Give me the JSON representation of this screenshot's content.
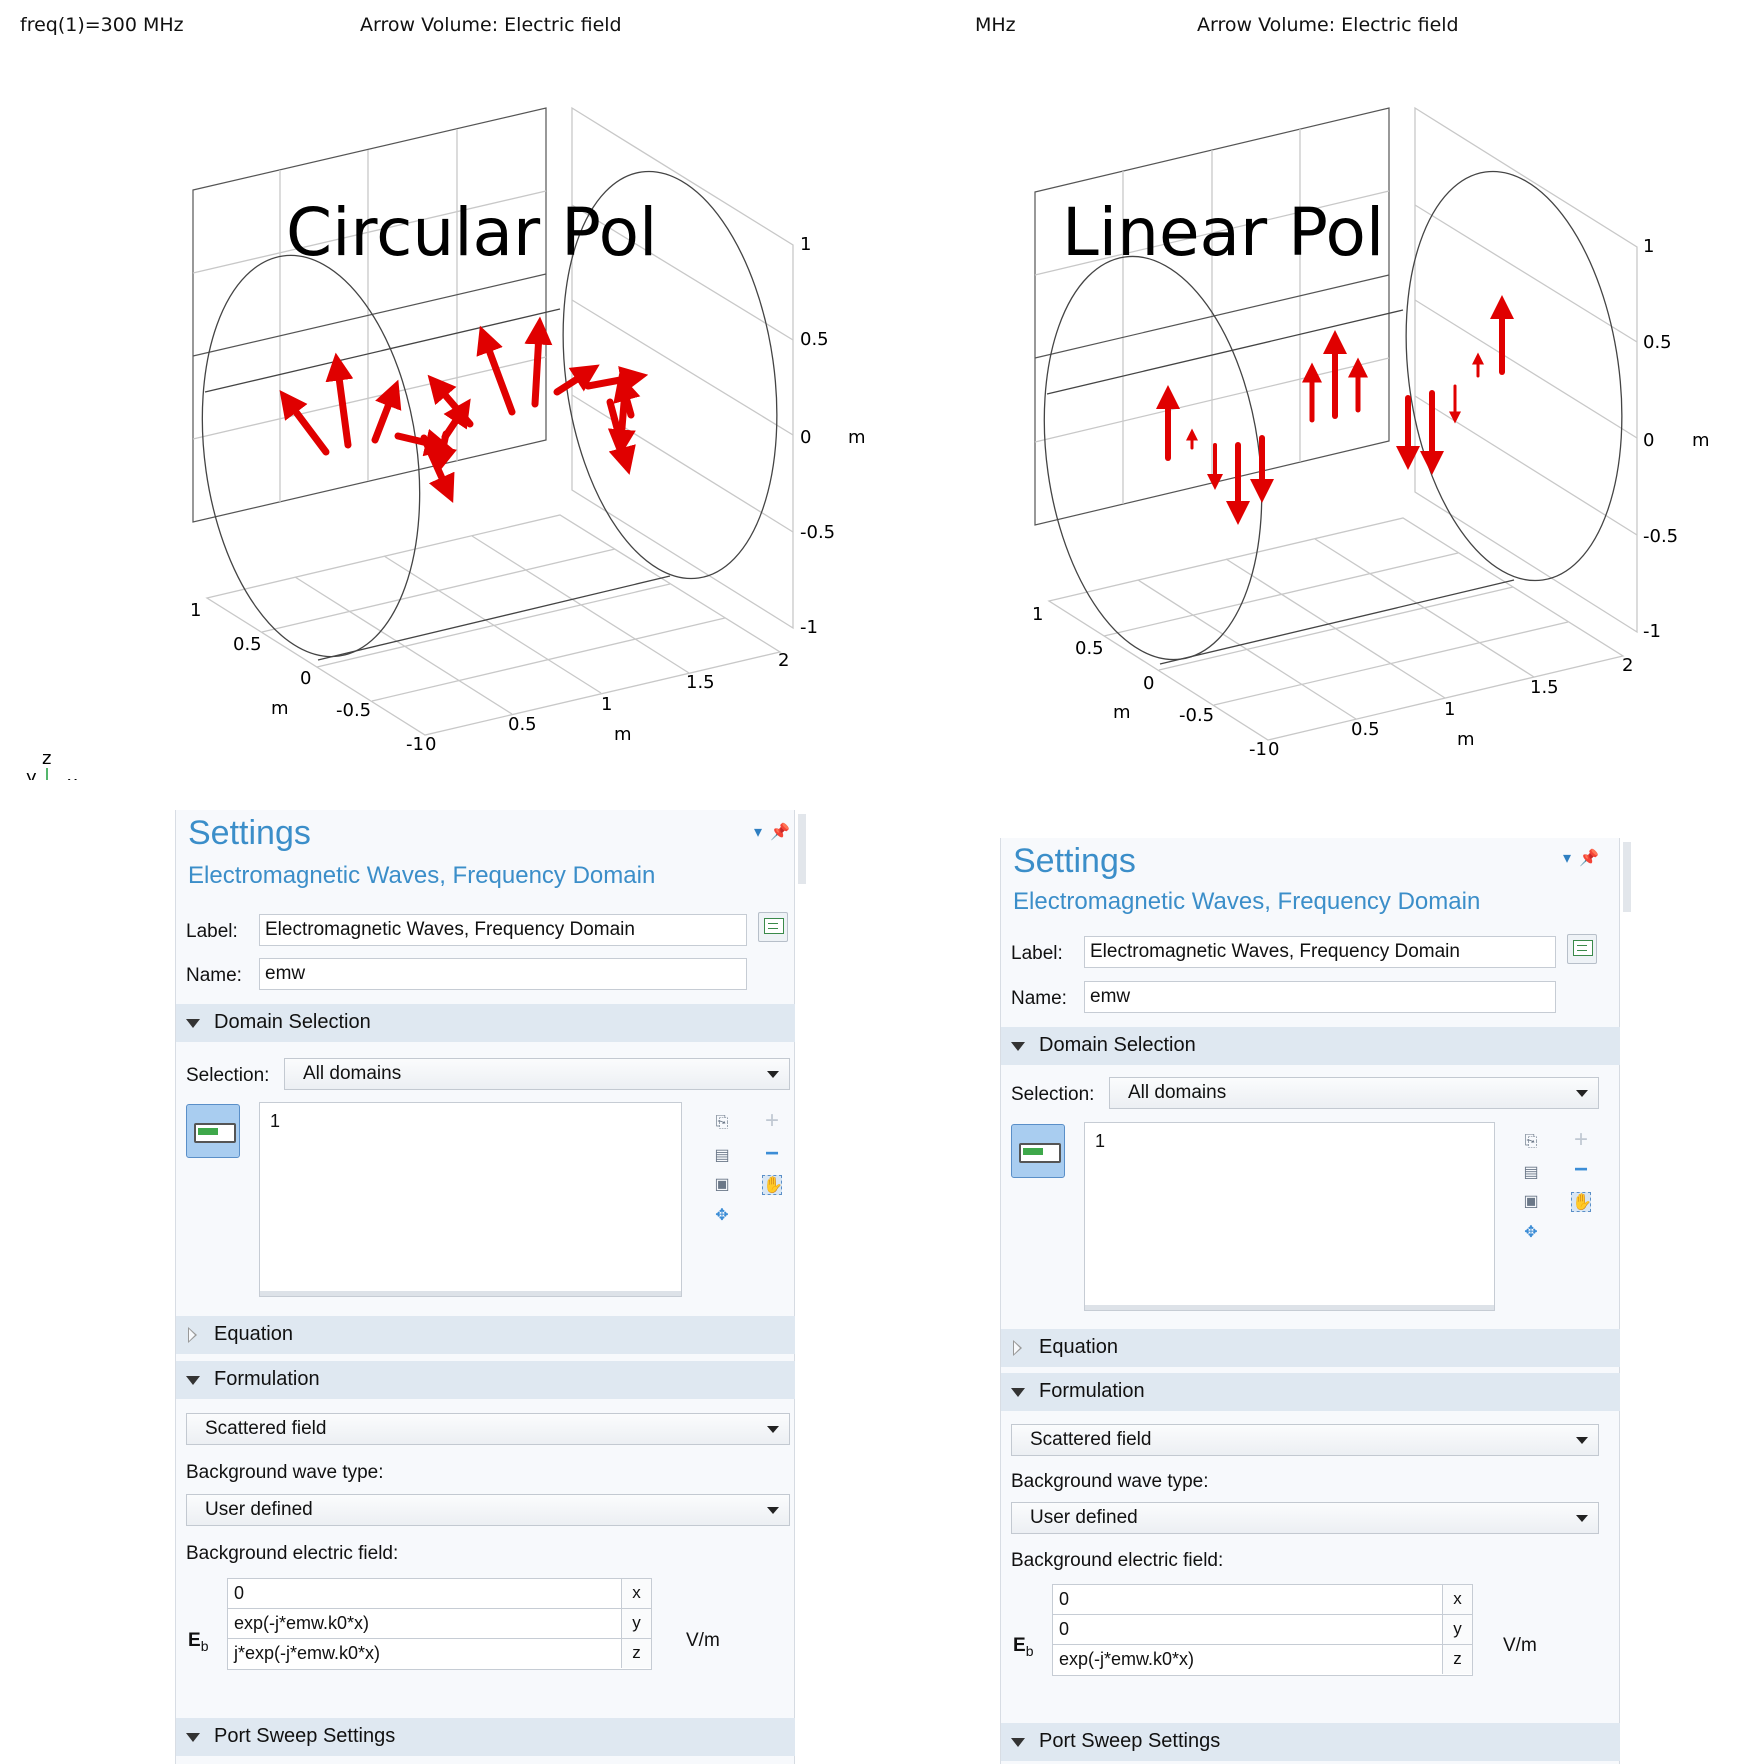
{
  "left_plot": {
    "header_left": "freq(1)=300 MHz",
    "header_title": "Arrow Volume: Electric field",
    "overlay_title": "Circular Pol",
    "z_ticks": [
      "1",
      "0.5",
      "0",
      "-0.5",
      "-1"
    ],
    "z_unit": "m",
    "y_ticks": [
      "1",
      "0.5",
      "0",
      "-0.5",
      "-1"
    ],
    "y_unit": "m",
    "x_ticks": [
      "0",
      "0.5",
      "1",
      "1.5",
      "2"
    ],
    "x_unit": "m",
    "arrow_color": "#e00000"
  },
  "right_plot": {
    "header_left": "MHz",
    "header_title": "Arrow Volume: Electric field",
    "overlay_title": "Linear Pol",
    "z_ticks": [
      "1",
      "0.5",
      "0",
      "-0.5",
      "-1"
    ],
    "z_unit": "m",
    "y_ticks": [
      "1",
      "0.5",
      "0",
      "-0.5",
      "-1"
    ],
    "y_unit": "m",
    "x_ticks": [
      "0",
      "0.5",
      "1",
      "1.5",
      "2"
    ],
    "x_unit": "m",
    "arrow_color": "#e00000"
  },
  "axis_triad": {
    "z": "z",
    "y": "y",
    "x": "x"
  },
  "left_settings": {
    "title": "Settings",
    "subtitle": "Electromagnetic Waves, Frequency Domain",
    "label_caption": "Label:",
    "label_value": "Electromagnetic Waves, Frequency Domain",
    "name_caption": "Name:",
    "name_value": "emw",
    "domain_section": "Domain Selection",
    "selection_caption": "Selection:",
    "selection_value": "All domains",
    "domain_list": [
      "1"
    ],
    "equation_section": "Equation",
    "formulation_section": "Formulation",
    "formulation_value": "Scattered field",
    "bg_wave_caption": "Background wave type:",
    "bg_wave_value": "User defined",
    "bg_field_caption": "Background electric field:",
    "eb_symbol": "E",
    "eb_sub": "b",
    "eb_unit": "V/m",
    "eb_components": [
      {
        "value": "0",
        "comp": "x"
      },
      {
        "value": "exp(-j*emw.k0*x)",
        "comp": "y"
      },
      {
        "value": "j*exp(-j*emw.k0*x)",
        "comp": "z"
      }
    ],
    "port_section": "Port Sweep Settings"
  },
  "right_settings": {
    "title": "Settings",
    "subtitle": "Electromagnetic Waves, Frequency Domain",
    "label_caption": "Label:",
    "label_value": "Electromagnetic Waves, Frequency Domain",
    "name_caption": "Name:",
    "name_value": "emw",
    "domain_section": "Domain Selection",
    "selection_caption": "Selection:",
    "selection_value": "All domains",
    "domain_list": [
      "1"
    ],
    "equation_section": "Equation",
    "formulation_section": "Formulation",
    "formulation_value": "Scattered field",
    "bg_wave_caption": "Background wave type:",
    "bg_wave_value": "User defined",
    "bg_field_caption": "Background electric field:",
    "eb_symbol": "E",
    "eb_sub": "b",
    "eb_unit": "V/m",
    "eb_components": [
      {
        "value": "0",
        "comp": "x"
      },
      {
        "value": "0",
        "comp": "y"
      },
      {
        "value": "exp(-j*emw.k0*x)",
        "comp": "z"
      }
    ],
    "port_section": "Port Sweep Settings"
  }
}
